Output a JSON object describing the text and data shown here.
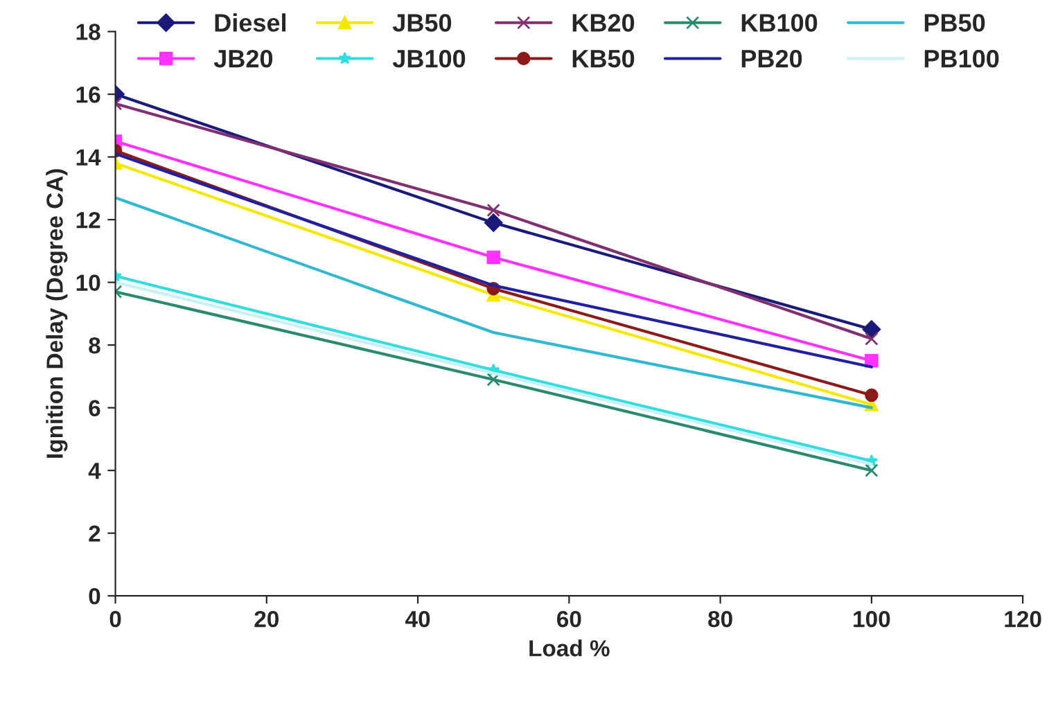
{
  "chart_data": {
    "type": "line",
    "xlabel": "Load %",
    "ylabel": "Ignition Delay (Degree CA)",
    "x": [
      0,
      50,
      100
    ],
    "xlim": [
      0,
      120
    ],
    "xticks": [
      0,
      20,
      40,
      60,
      80,
      100,
      120
    ],
    "ylim": [
      0,
      18
    ],
    "yticks": [
      0,
      2,
      4,
      6,
      8,
      10,
      12,
      14,
      16,
      18
    ],
    "grid": false,
    "legend": "top",
    "series": [
      {
        "name": "Diesel",
        "color": "#1a1a7a",
        "marker": "diamond",
        "values": [
          16.0,
          11.9,
          8.5
        ]
      },
      {
        "name": "JB20",
        "color": "#ff33ff",
        "marker": "square",
        "values": [
          14.5,
          10.8,
          7.5
        ]
      },
      {
        "name": "JB50",
        "color": "#f5e800",
        "marker": "triangle",
        "values": [
          13.8,
          9.6,
          6.1
        ]
      },
      {
        "name": "JB100",
        "color": "#33dddd",
        "marker": "star",
        "values": [
          10.2,
          7.2,
          4.3
        ]
      },
      {
        "name": "KB20",
        "color": "#803070",
        "marker": "cross",
        "values": [
          15.7,
          12.3,
          8.2
        ]
      },
      {
        "name": "KB50",
        "color": "#8b1a1a",
        "marker": "circle",
        "values": [
          14.2,
          9.8,
          6.4
        ]
      },
      {
        "name": "KB100",
        "color": "#2a8a70",
        "marker": "cross",
        "values": [
          9.7,
          6.9,
          4.0
        ]
      },
      {
        "name": "PB20",
        "color": "#2020a0",
        "marker": "none",
        "values": [
          14.1,
          9.9,
          7.3
        ]
      },
      {
        "name": "PB50",
        "color": "#30b8d0",
        "marker": "none",
        "values": [
          12.7,
          8.4,
          6.0
        ]
      },
      {
        "name": "PB100",
        "color": "#c8f0f5",
        "marker": "none",
        "values": [
          10.0,
          7.1,
          4.2
        ]
      }
    ]
  }
}
